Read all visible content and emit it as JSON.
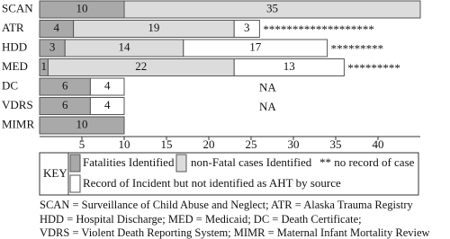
{
  "chart_data": {
    "type": "bar",
    "orientation": "horizontal",
    "stacked": true,
    "categories": [
      "SCAN",
      "ATR",
      "HDD",
      "MED",
      "DC",
      "VDRS",
      "MIMR"
    ],
    "series": [
      {
        "name": "Fatalities Identified",
        "color": "#a9a9a9",
        "values": [
          10,
          4,
          3,
          1,
          6,
          6,
          10
        ]
      },
      {
        "name": "non-Fatal cases Identified",
        "color": "#dcdcdc",
        "values": [
          35,
          19,
          14,
          22,
          null,
          null,
          null
        ]
      },
      {
        "name": "Record of Incident but not identified as AHT by source",
        "color": "#ffffff",
        "values": [
          null,
          3,
          17,
          13,
          4,
          4,
          null
        ]
      }
    ],
    "row_notes": [
      null,
      "*******************",
      "*********",
      "*********",
      "NA",
      "NA",
      null
    ],
    "xlim": [
      0,
      45
    ],
    "xticks": [
      5,
      10,
      15,
      20,
      25,
      30,
      35,
      40
    ],
    "legend_title": "KEY",
    "legend_note": "** no record of case",
    "footnote": [
      "SCAN = Surveillance of Child Abuse and Neglect; ATR = Alaska Trauma Registry",
      "HDD = Hospital Discharge; MED = Medicaid; DC = Death Certificate;",
      "VDRS = Violent Death Reporting System; MIMR = Maternal Infant Mortality Review"
    ]
  }
}
